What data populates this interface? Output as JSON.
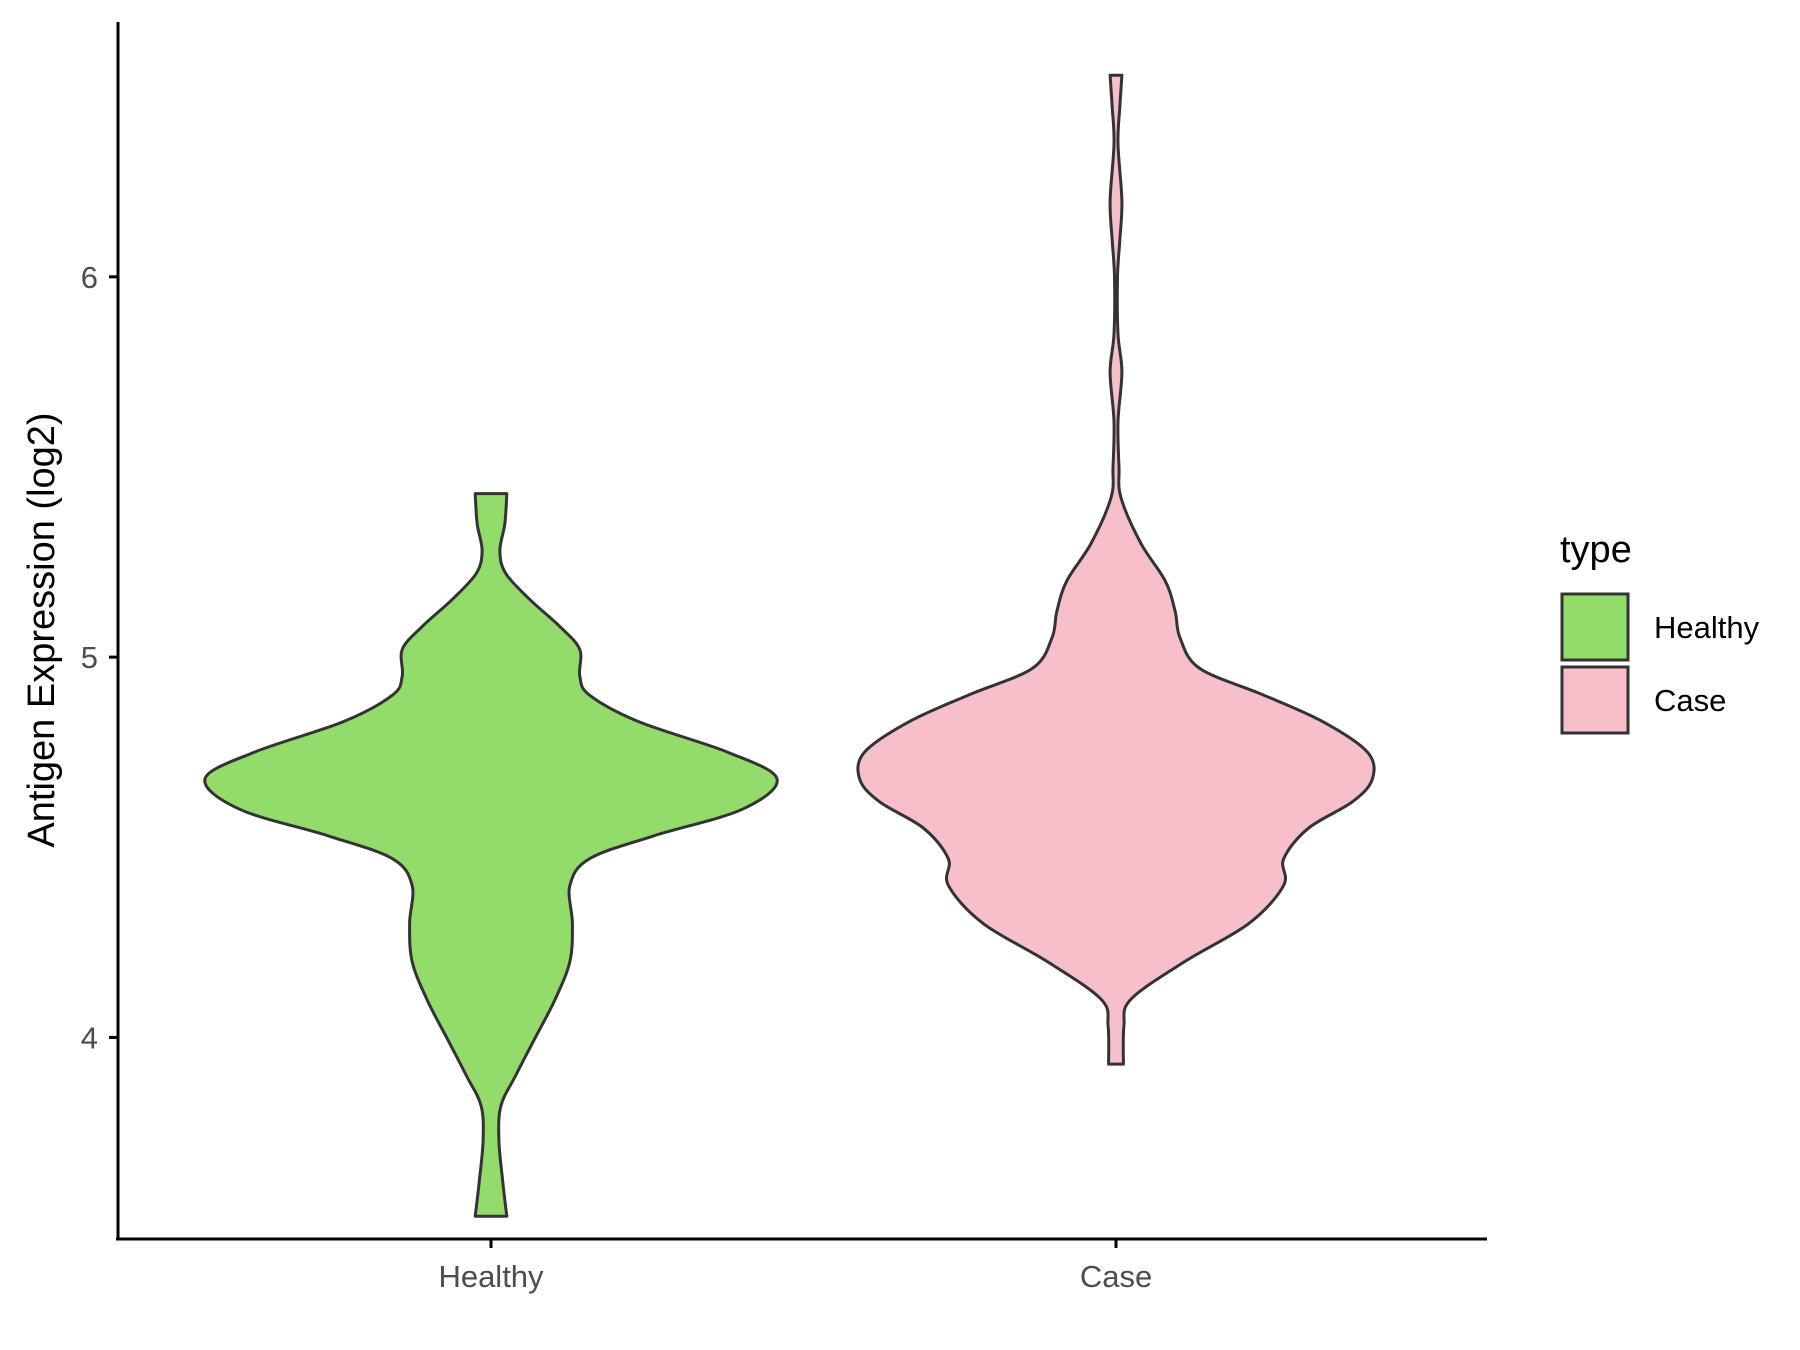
{
  "chart_data": {
    "type": "violin",
    "title": "",
    "xlabel": "",
    "ylabel": "Antigen Expression (log2)",
    "ylim": [
      3.47,
      6.67
    ],
    "yticks": [
      4,
      5,
      6
    ],
    "ytick_labels": [
      "4",
      "5",
      "6"
    ],
    "categories": [
      "Healthy",
      "Case"
    ],
    "grid": false,
    "legend": {
      "title": "type",
      "position": "right",
      "entries": [
        {
          "label": "Healthy",
          "color": "#93dc6c"
        },
        {
          "label": "Case",
          "color": "#f7bfca"
        }
      ]
    },
    "series": [
      {
        "name": "Healthy",
        "color": "#93dc6c",
        "density": [
          [
            3.53,
            0.032
          ],
          [
            3.62,
            0.024
          ],
          [
            3.73,
            0.016
          ],
          [
            3.82,
            0.02
          ],
          [
            3.9,
            0.05
          ],
          [
            4.0,
            0.09
          ],
          [
            4.1,
            0.13
          ],
          [
            4.2,
            0.16
          ],
          [
            4.3,
            0.165
          ],
          [
            4.4,
            0.16
          ],
          [
            4.47,
            0.2
          ],
          [
            4.53,
            0.33
          ],
          [
            4.6,
            0.51
          ],
          [
            4.68,
            0.58
          ],
          [
            4.75,
            0.48
          ],
          [
            4.83,
            0.3
          ],
          [
            4.9,
            0.2
          ],
          [
            4.95,
            0.18
          ],
          [
            5.02,
            0.18
          ],
          [
            5.08,
            0.14
          ],
          [
            5.15,
            0.08
          ],
          [
            5.22,
            0.03
          ],
          [
            5.28,
            0.018
          ],
          [
            5.35,
            0.028
          ],
          [
            5.43,
            0.032
          ]
        ]
      },
      {
        "name": "Case",
        "color": "#f7bfca",
        "density": [
          [
            3.93,
            0.015
          ],
          [
            4.03,
            0.016
          ],
          [
            4.1,
            0.03
          ],
          [
            4.2,
            0.14
          ],
          [
            4.3,
            0.27
          ],
          [
            4.4,
            0.34
          ],
          [
            4.47,
            0.34
          ],
          [
            4.55,
            0.39
          ],
          [
            4.62,
            0.48
          ],
          [
            4.68,
            0.52
          ],
          [
            4.75,
            0.51
          ],
          [
            4.83,
            0.42
          ],
          [
            4.9,
            0.3
          ],
          [
            4.97,
            0.17
          ],
          [
            5.05,
            0.13
          ],
          [
            5.12,
            0.12
          ],
          [
            5.2,
            0.1
          ],
          [
            5.3,
            0.05
          ],
          [
            5.42,
            0.01
          ],
          [
            5.5,
            0.006
          ],
          [
            5.62,
            0.004
          ],
          [
            5.75,
            0.012
          ],
          [
            5.85,
            0.004
          ],
          [
            6.0,
            0.003
          ],
          [
            6.1,
            0.008
          ],
          [
            6.2,
            0.012
          ],
          [
            6.35,
            0.004
          ],
          [
            6.45,
            0.008
          ],
          [
            6.53,
            0.012
          ]
        ]
      }
    ]
  }
}
